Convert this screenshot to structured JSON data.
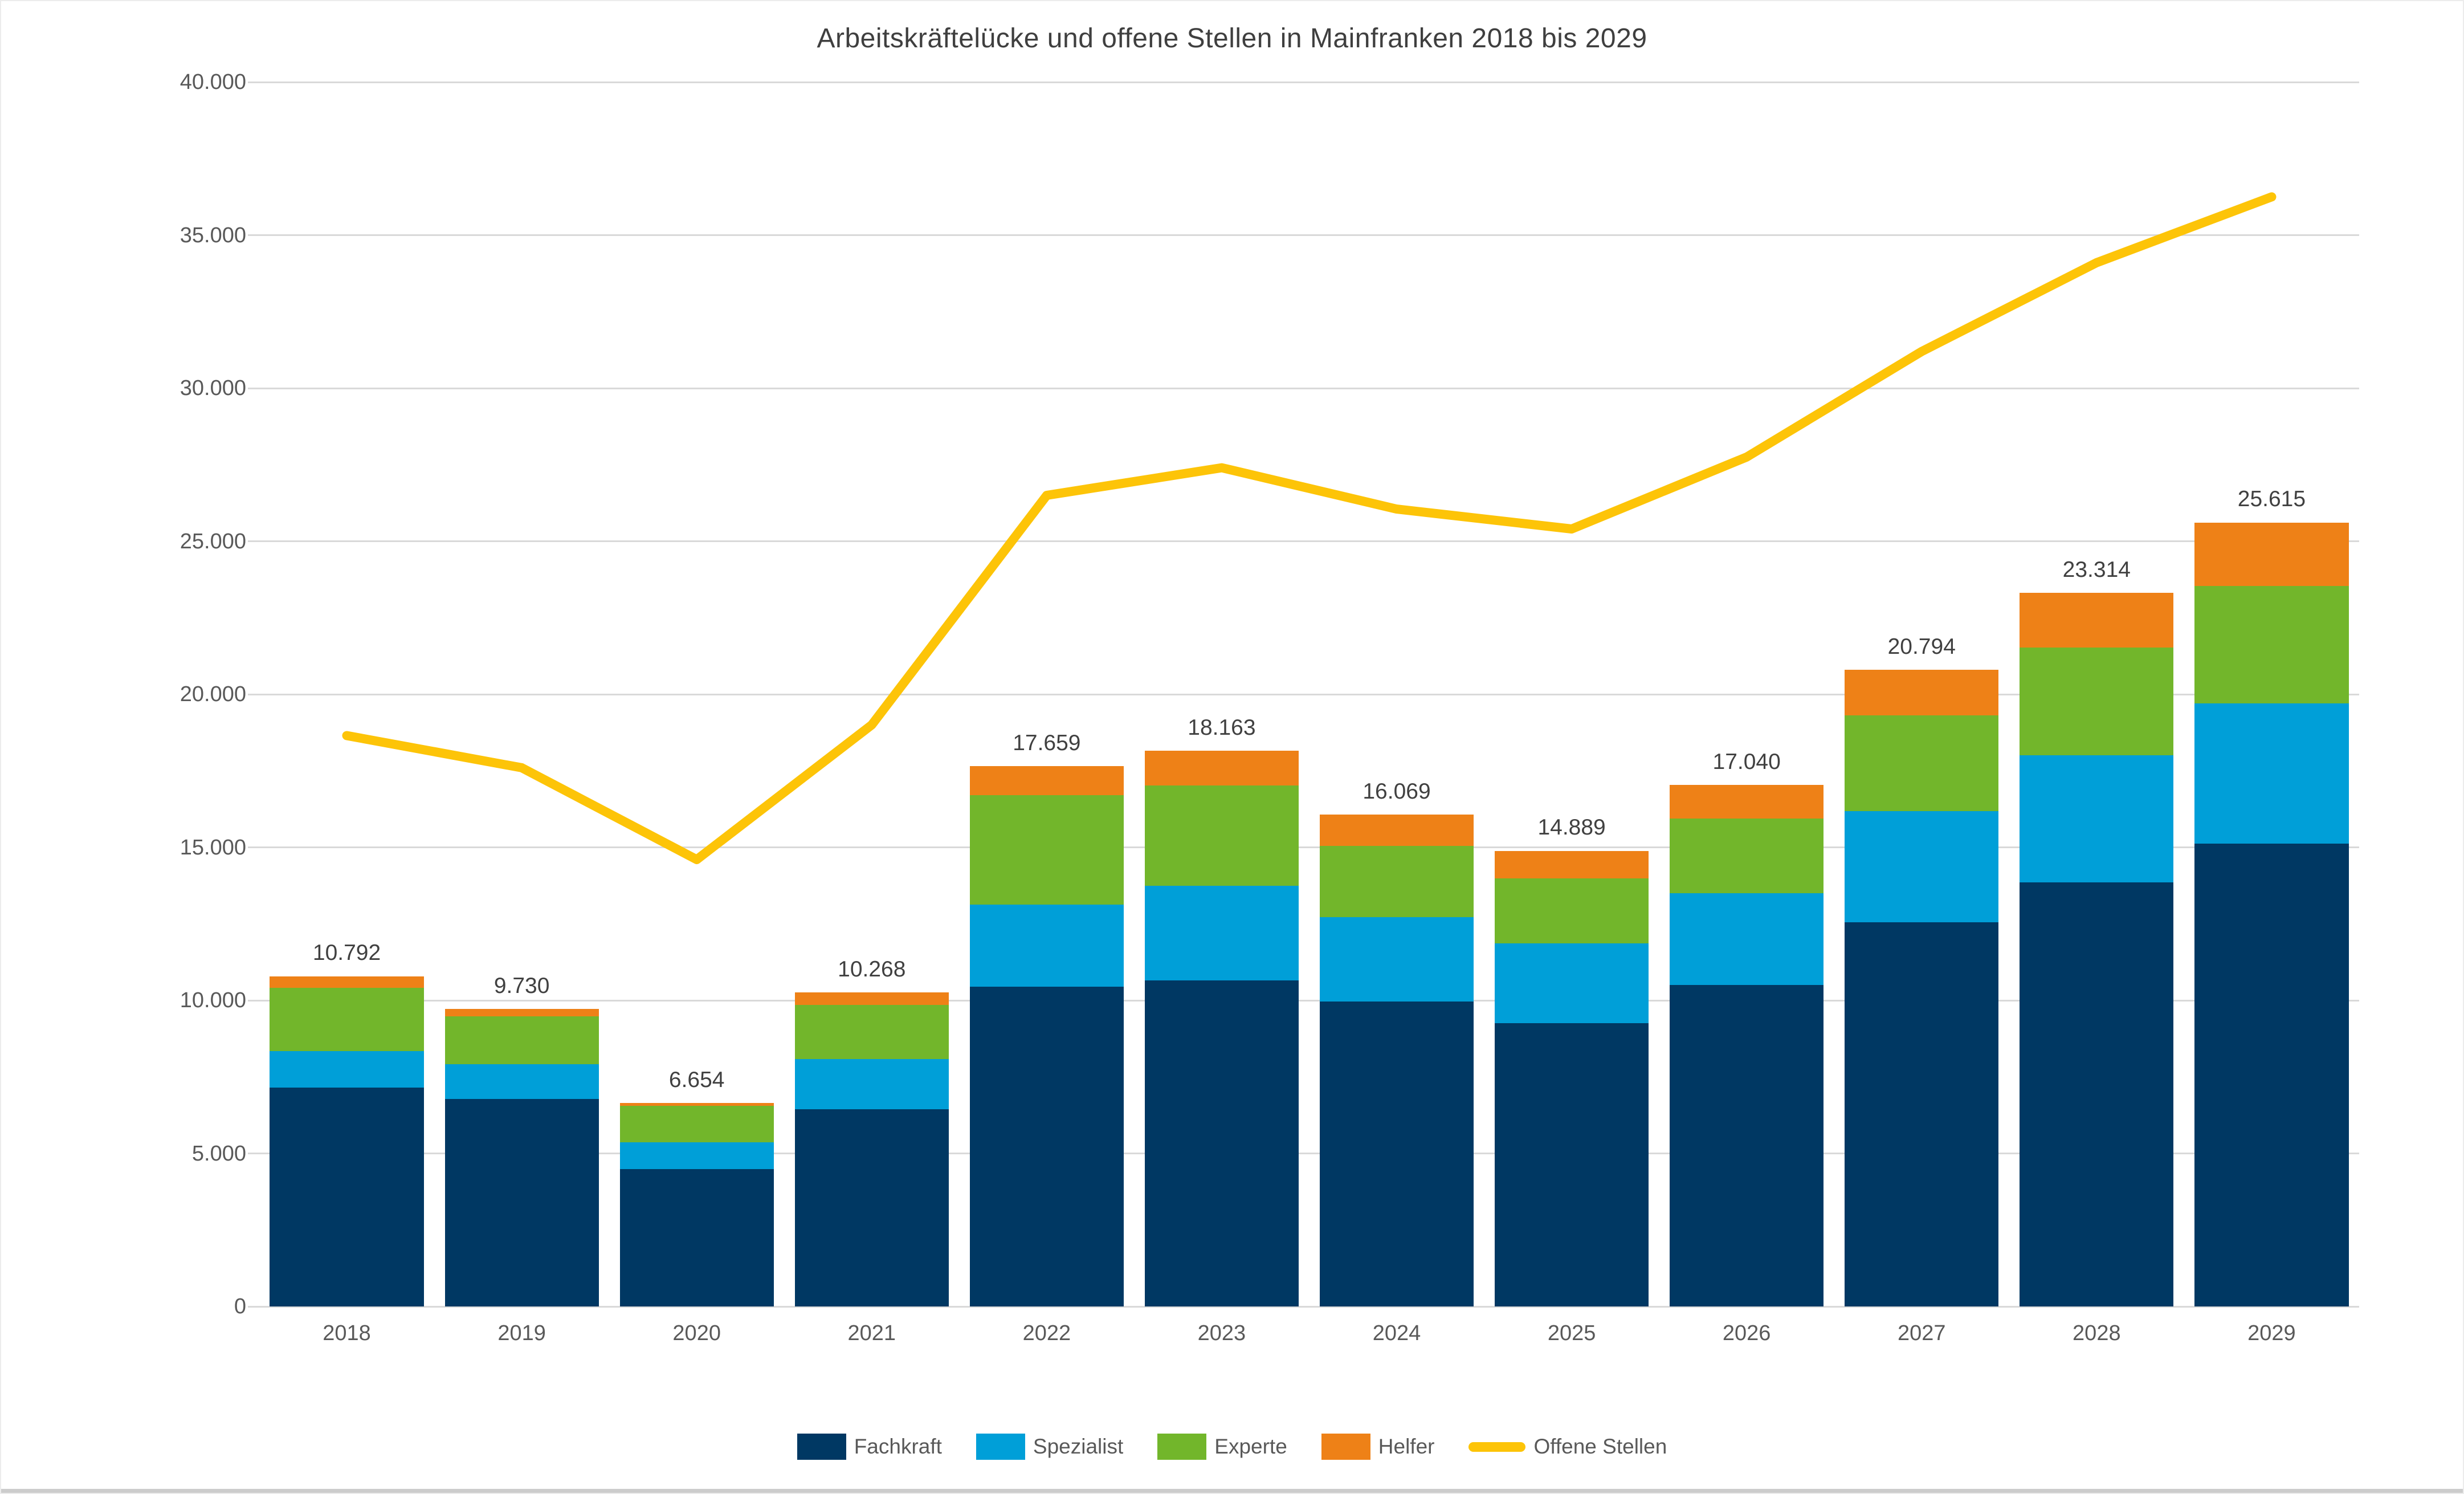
{
  "title": "Arbeitskräftelücke und offene Stellen in Mainfranken 2018 bis 2029",
  "colors": {
    "fachkraft": "#003863",
    "spezialist": "#009fd8",
    "experte": "#72b62b",
    "helfer": "#ee8117",
    "offene_stellen": "#fdc408",
    "grid": "#d9d9d9",
    "axis_text": "#595959",
    "title_text": "#3f3f3f",
    "value_label_text": "#404040"
  },
  "chart_data": {
    "type": "bar",
    "stacked": true,
    "grid": true,
    "legend_position": "bottom",
    "title": "Arbeitskräftelücke und offene Stellen in Mainfranken 2018 bis 2029",
    "xlabel": "",
    "ylabel": "",
    "ylim": [
      0,
      40000
    ],
    "categories": [
      "2018",
      "2019",
      "2020",
      "2021",
      "2022",
      "2023",
      "2024",
      "2025",
      "2026",
      "2027",
      "2028",
      "2029"
    ],
    "series": [
      {
        "name": "Fachkraft",
        "color": "#003863",
        "values": [
          7150,
          6770,
          4480,
          6440,
          10440,
          10650,
          9960,
          9260,
          10500,
          12550,
          13850,
          15130
        ]
      },
      {
        "name": "Spezialist",
        "color": "#009fd8",
        "values": [
          1200,
          1150,
          880,
          1640,
          2690,
          3100,
          2760,
          2600,
          3010,
          3640,
          4160,
          4570
        ]
      },
      {
        "name": "Experte",
        "color": "#72b62b",
        "values": [
          2060,
          1560,
          1204,
          1768,
          3570,
          3263,
          2319,
          2119,
          2430,
          3124,
          3514,
          3830
        ]
      },
      {
        "name": "Helfer",
        "color": "#ee8117",
        "values": [
          382,
          250,
          90,
          420,
          959,
          1150,
          1030,
          910,
          1100,
          1480,
          1790,
          2085
        ]
      }
    ],
    "line_series": {
      "name": "Offene Stellen",
      "color": "#fdc408",
      "values": [
        18650,
        17600,
        14600,
        19000,
        26500,
        27400,
        26050,
        25400,
        27750,
        31200,
        34100,
        36250
      ]
    },
    "totals": [
      10792,
      9730,
      6654,
      10268,
      17659,
      18163,
      16069,
      14889,
      17040,
      20794,
      23314,
      25615
    ],
    "totals_formatted": [
      "10.792",
      "9.730",
      "6.654",
      "10.268",
      "17.659",
      "18.163",
      "16.069",
      "14.889",
      "17.040",
      "20.794",
      "23.314",
      "25.615"
    ],
    "y_ticks": [
      {
        "v": 0,
        "label": "0"
      },
      {
        "v": 5000,
        "label": "5.000"
      },
      {
        "v": 10000,
        "label": "10.000"
      },
      {
        "v": 15000,
        "label": "15.000"
      },
      {
        "v": 20000,
        "label": "20.000"
      },
      {
        "v": 25000,
        "label": "25.000"
      },
      {
        "v": 30000,
        "label": "30.000"
      },
      {
        "v": 35000,
        "label": "35.000"
      },
      {
        "v": 40000,
        "label": "40.000"
      }
    ]
  }
}
